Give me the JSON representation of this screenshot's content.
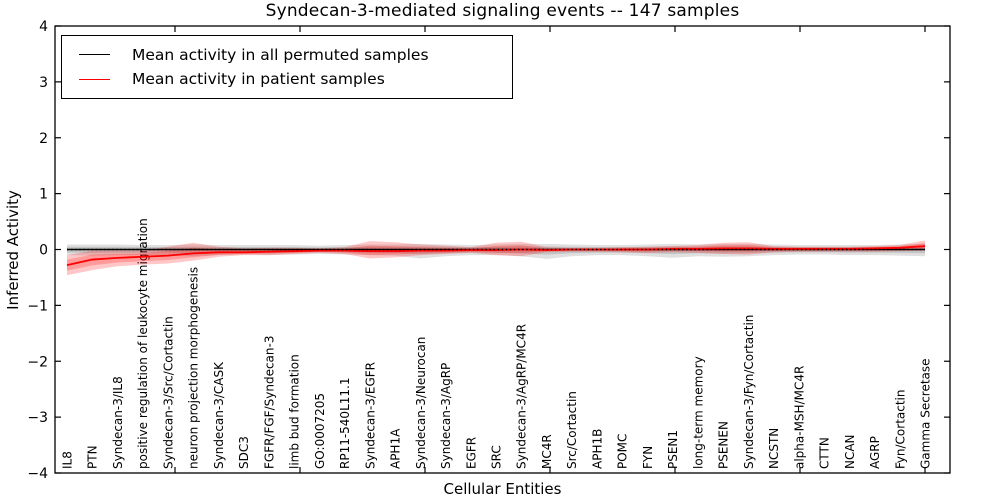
{
  "chart_data": {
    "type": "line",
    "title": "Syndecan-3-mediated signaling events -- 147 samples",
    "xlabel": "Cellular Entities",
    "ylabel": "Inferred Activity",
    "ylim": [
      -4,
      4
    ],
    "ytick_labels": [
      "4",
      "3",
      "2",
      "1",
      "0",
      "−1",
      "−2",
      "−3",
      "−4"
    ],
    "grid": false,
    "legend_position": "upper-left",
    "zero_reference_line": "dotted",
    "categories": [
      "IL8",
      "PTN",
      "Syndecan-3/IL8",
      "positive regulation of leukocyte migration",
      "Syndecan-3/Src/Cortactin",
      "neuron projection morphogenesis",
      "Syndecan-3/CASK",
      "SDC3",
      "FGFR/FGF/Syndecan-3",
      "limb bud formation",
      "GO:0007205",
      "RP11-540L11.1",
      "Syndecan-3/EGFR",
      "APH1A",
      "Syndecan-3/Neurocan",
      "Syndecan-3/AgRP",
      "EGFR",
      "SRC",
      "Syndecan-3/AgRP/MC4R",
      "MC4R",
      "Src/Cortactin",
      "APH1B",
      "POMC",
      "FYN",
      "PSEN1",
      "long-term memory",
      "PSENEN",
      "Syndecan-3/Fyn/Cortactin",
      "NCSTN",
      "alpha-MSH/MC4R",
      "CTTN",
      "NCAN",
      "AGRP",
      "Fyn/Cortactin",
      "Gamma Secretase"
    ],
    "series": [
      {
        "name": "Mean activity in all permuted samples",
        "color": "#000000",
        "band_color": "rgba(0,0,0,0.12)",
        "values": [
          0,
          0,
          0,
          0,
          0,
          0,
          0,
          0,
          0,
          0,
          0,
          0,
          0,
          0,
          0,
          0,
          0,
          0,
          0,
          0,
          0,
          0,
          0,
          0,
          0,
          0,
          0,
          0,
          0,
          0,
          0,
          0,
          0,
          0,
          0
        ],
        "band_low": [
          -0.1,
          -0.11,
          -0.1,
          -0.1,
          -0.1,
          -0.12,
          -0.1,
          -0.09,
          -0.1,
          -0.09,
          -0.08,
          -0.09,
          -0.1,
          -0.11,
          -0.16,
          -0.12,
          -0.1,
          -0.1,
          -0.12,
          -0.17,
          -0.12,
          -0.1,
          -0.1,
          -0.12,
          -0.15,
          -0.12,
          -0.13,
          -0.12,
          -0.1,
          -0.09,
          -0.09,
          -0.1,
          -0.1,
          -0.11,
          -0.12
        ],
        "band_high": [
          0.09,
          0.09,
          0.09,
          0.08,
          0.08,
          0.09,
          0.08,
          0.08,
          0.08,
          0.08,
          0.07,
          0.08,
          0.09,
          0.09,
          0.1,
          0.09,
          0.08,
          0.09,
          0.1,
          0.1,
          0.09,
          0.08,
          0.08,
          0.09,
          0.1,
          0.09,
          0.1,
          0.1,
          0.09,
          0.08,
          0.08,
          0.08,
          0.08,
          0.09,
          0.1
        ]
      },
      {
        "name": "Mean activity in patient samples",
        "color": "#ff0000",
        "band_color": "rgba(255,0,0,0.22)",
        "values": [
          -0.28,
          -0.18,
          -0.15,
          -0.13,
          -0.11,
          -0.07,
          -0.05,
          -0.05,
          -0.04,
          -0.03,
          -0.02,
          -0.02,
          -0.03,
          -0.03,
          -0.02,
          -0.02,
          -0.01,
          -0.01,
          0.0,
          -0.01,
          0.0,
          0.0,
          0.0,
          0.0,
          0.01,
          0.01,
          0.02,
          0.02,
          0.01,
          0.01,
          0.01,
          0.01,
          0.02,
          0.03,
          0.06
        ],
        "band_low": [
          -0.46,
          -0.37,
          -0.3,
          -0.27,
          -0.25,
          -0.2,
          -0.13,
          -0.1,
          -0.1,
          -0.08,
          -0.06,
          -0.08,
          -0.16,
          -0.14,
          -0.1,
          -0.08,
          -0.06,
          -0.1,
          -0.12,
          -0.05,
          -0.04,
          -0.04,
          -0.05,
          -0.06,
          -0.05,
          -0.06,
          -0.08,
          -0.09,
          -0.05,
          -0.04,
          -0.04,
          -0.04,
          -0.04,
          -0.03,
          -0.02
        ],
        "band_high": [
          -0.1,
          -0.02,
          -0.02,
          -0.02,
          0.05,
          0.12,
          0.05,
          0.02,
          0.03,
          0.03,
          0.02,
          0.04,
          0.15,
          0.13,
          0.09,
          0.07,
          0.04,
          0.12,
          0.14,
          0.04,
          0.03,
          0.03,
          0.04,
          0.05,
          0.06,
          0.08,
          0.12,
          0.13,
          0.06,
          0.05,
          0.05,
          0.05,
          0.06,
          0.08,
          0.16
        ]
      }
    ]
  }
}
